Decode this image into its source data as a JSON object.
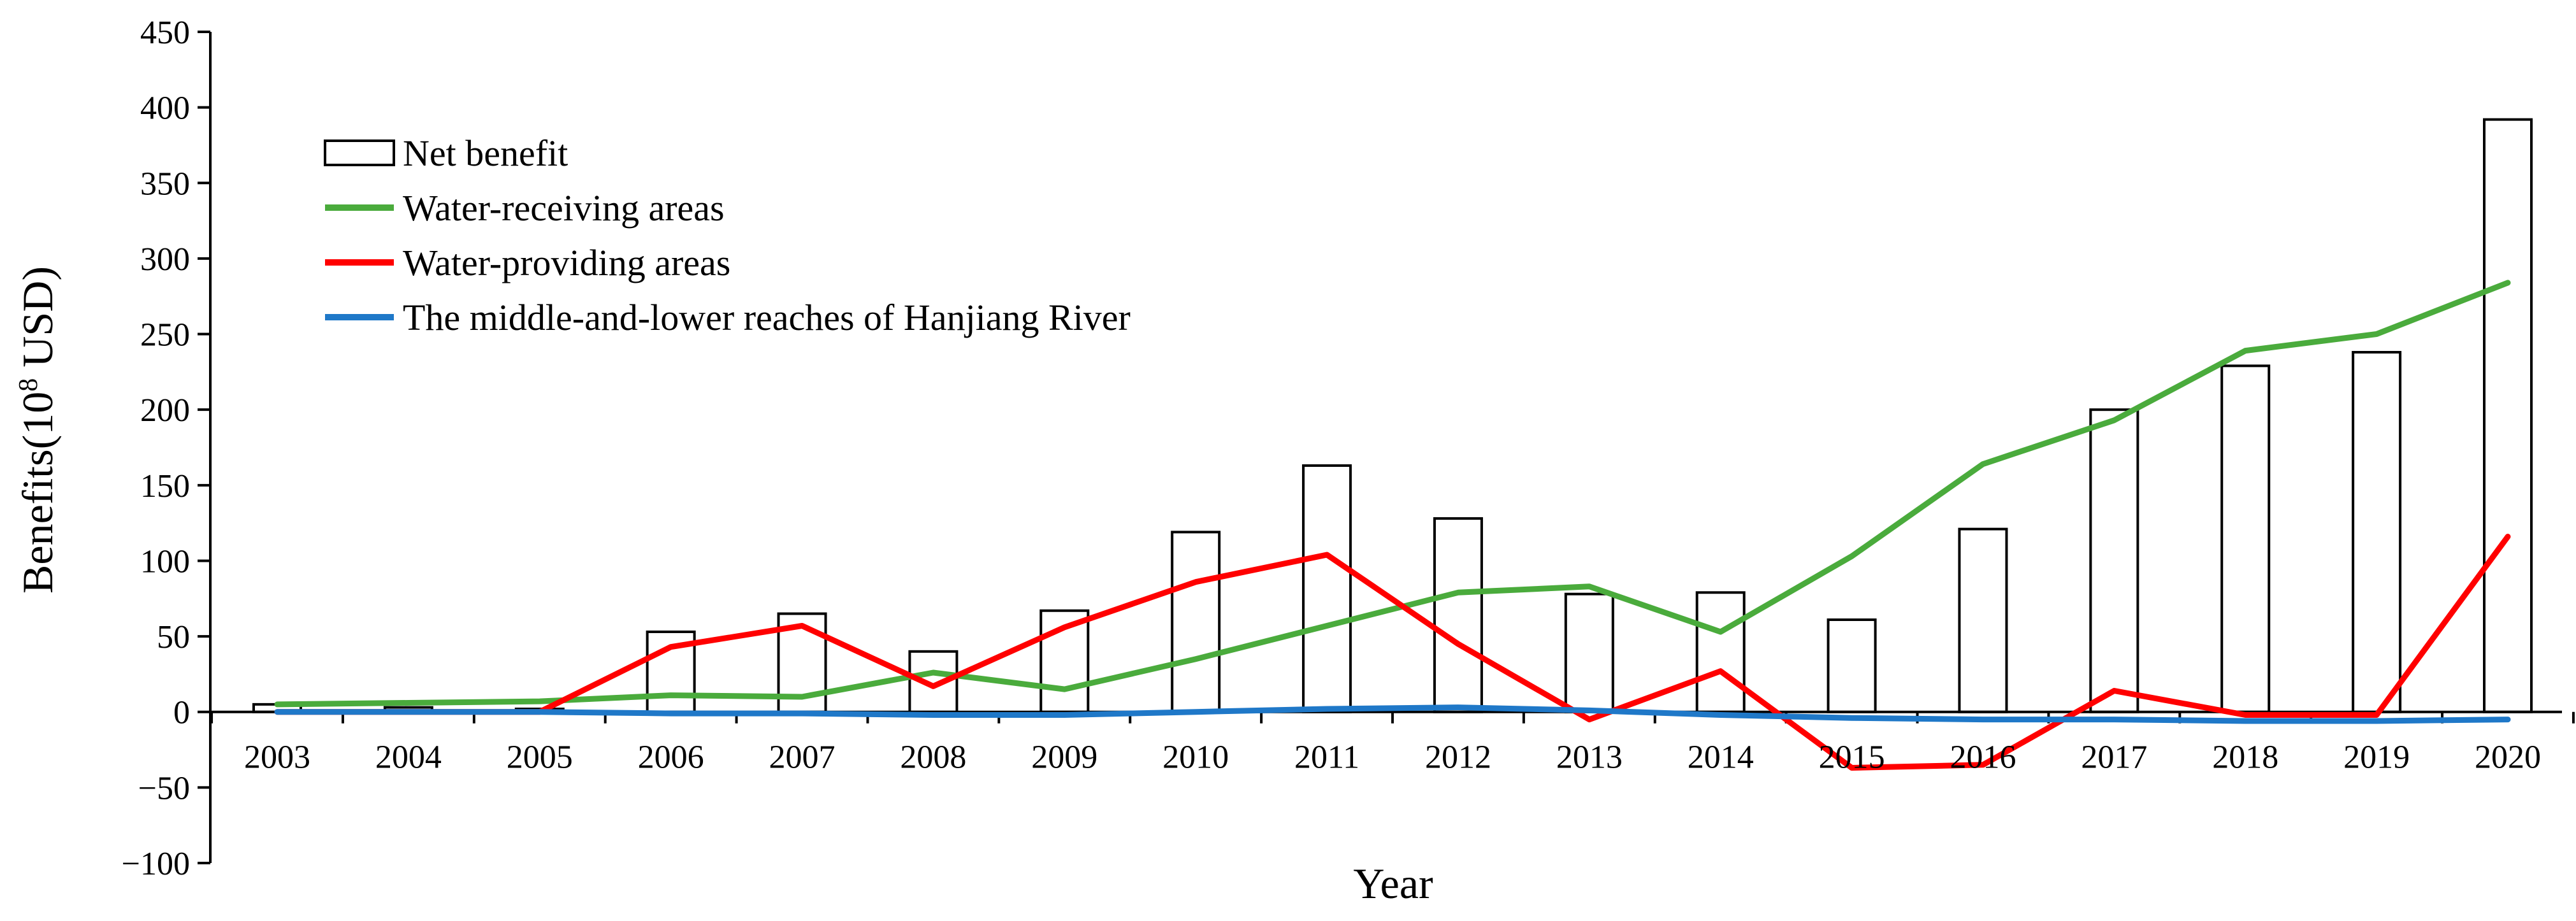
{
  "chart_data": {
    "type": "bar",
    "title": "",
    "xlabel": "Year",
    "ylabel": "Benefits(10",
    "ylabel_superscript": "8",
    "ylabel_unit": " USD)",
    "categories": [
      "2003",
      "2004",
      "2005",
      "2006",
      "2007",
      "2008",
      "2009",
      "2010",
      "2011",
      "2012",
      "2013",
      "2014",
      "2015",
      "2016",
      "2017",
      "2018",
      "2019",
      "2020"
    ],
    "ylim": [
      -100,
      450
    ],
    "yticks": [
      -100,
      -50,
      0,
      50,
      100,
      150,
      200,
      250,
      300,
      350,
      400,
      450
    ],
    "ytick_labels": [
      "−100",
      "−50",
      "0",
      "50",
      "100",
      "150",
      "200",
      "250",
      "300",
      "350",
      "400",
      "450"
    ],
    "grid": false,
    "legend_position": "top-left",
    "series": [
      {
        "name": "Net benefit",
        "kind": "bar",
        "color": "#000000",
        "values": [
          5,
          3,
          2,
          53,
          65,
          40,
          67,
          119,
          163,
          128,
          78,
          79,
          61,
          121,
          200,
          229,
          238,
          392
        ]
      },
      {
        "name": "Water-receiving areas",
        "kind": "line",
        "color": "#4aab3c",
        "values": [
          5,
          6,
          7,
          11,
          10,
          26,
          15,
          35,
          57,
          79,
          83,
          53,
          103,
          164,
          193,
          239,
          250,
          284
        ]
      },
      {
        "name": "Water-providing areas",
        "kind": "line",
        "color": "#ff0000",
        "values": [
          0,
          0,
          0,
          43,
          57,
          17,
          56,
          86,
          104,
          45,
          -5,
          27,
          -37,
          -35,
          14,
          -2,
          -2,
          116
        ]
      },
      {
        "name": "The middle-and-lower reaches of Hanjiang River",
        "kind": "line",
        "color": "#1f78c8",
        "values": [
          0,
          0,
          0,
          -1,
          -1,
          -2,
          -2,
          0,
          2,
          3,
          1,
          -2,
          -4,
          -5,
          -5,
          -6,
          -6,
          -5
        ]
      }
    ]
  }
}
